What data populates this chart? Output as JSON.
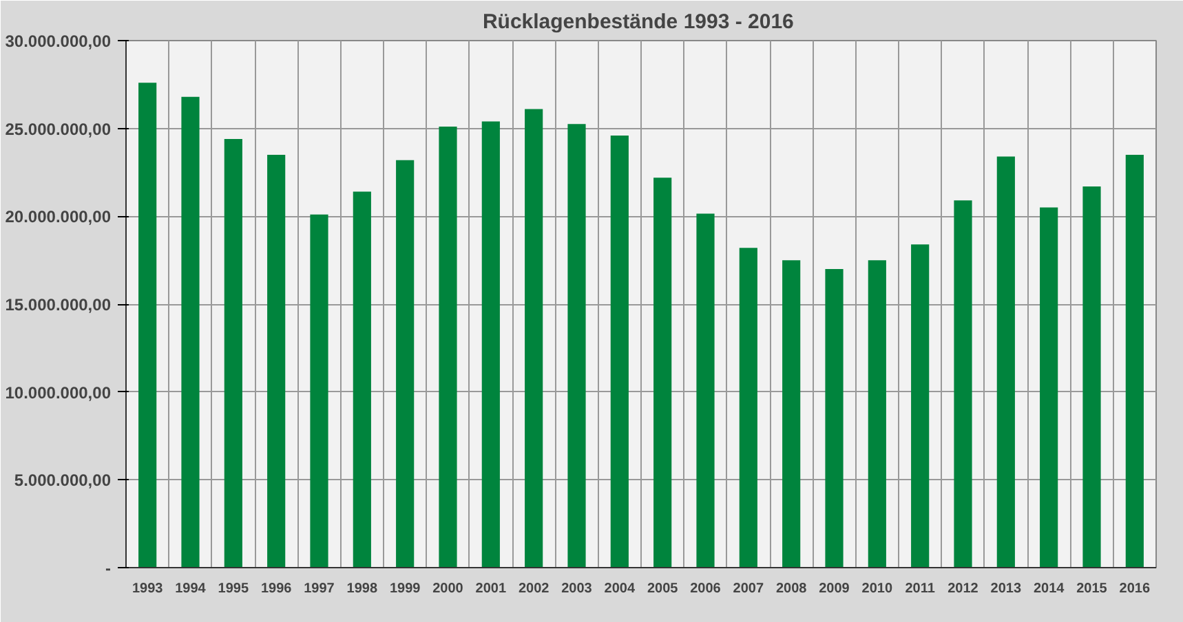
{
  "chart_data": {
    "type": "bar",
    "title": "Rücklagenbestände 1993 -  2016",
    "categories": [
      "1993",
      "1994",
      "1995",
      "1996",
      "1997",
      "1998",
      "1999",
      "2000",
      "2001",
      "2002",
      "2003",
      "2004",
      "2005",
      "2006",
      "2007",
      "2008",
      "2009",
      "2010",
      "2011",
      "2012",
      "2013",
      "2014",
      "2015",
      "2016"
    ],
    "values": [
      27600000,
      26800000,
      24400000,
      23500000,
      20100000,
      21400000,
      23200000,
      25100000,
      25400000,
      26100000,
      25250000,
      24600000,
      22200000,
      20150000,
      18200000,
      17500000,
      17000000,
      17500000,
      18400000,
      20900000,
      23400000,
      20500000,
      21700000,
      23500000
    ],
    "color": "#00843d",
    "ylim": [
      0,
      30000000
    ],
    "yticks": [
      {
        "value": 0,
        "label": "-"
      },
      {
        "value": 5000000,
        "label": "5.000.000,00"
      },
      {
        "value": 10000000,
        "label": "10.000.000,00"
      },
      {
        "value": 15000000,
        "label": "15.000.000,00"
      },
      {
        "value": 20000000,
        "label": "20.000.000,00"
      },
      {
        "value": 25000000,
        "label": "25.000.000,00"
      },
      {
        "value": 30000000,
        "label": "30.000.000,00"
      }
    ],
    "grid": true
  }
}
